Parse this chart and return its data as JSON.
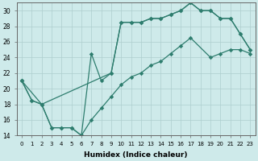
{
  "xlabel": "Humidex (Indice chaleur)",
  "bg_color": "#ceeaea",
  "line_color": "#2e7d6e",
  "grid_color": "#aecece",
  "xlim": [
    -0.5,
    23.5
  ],
  "ylim": [
    14,
    31
  ],
  "xticks": [
    0,
    1,
    2,
    3,
    4,
    5,
    6,
    7,
    8,
    9,
    10,
    11,
    12,
    13,
    14,
    15,
    16,
    17,
    18,
    19,
    20,
    21,
    22,
    23
  ],
  "yticks": [
    14,
    16,
    18,
    20,
    22,
    24,
    26,
    28,
    30
  ],
  "line1_x": [
    0,
    1,
    2,
    9,
    10,
    11,
    12,
    13,
    14,
    15,
    16,
    17,
    18,
    19,
    20,
    21,
    22,
    23
  ],
  "line1_y": [
    21,
    18.5,
    18,
    22,
    28.5,
    28.5,
    28.5,
    29,
    29,
    29.5,
    30,
    31,
    30,
    30,
    29,
    29,
    27,
    25
  ],
  "line2_x": [
    0,
    1,
    2,
    3,
    4,
    5,
    6,
    7,
    8,
    9,
    10,
    11,
    12,
    13,
    14,
    15,
    16,
    17,
    18,
    19,
    20,
    21,
    22,
    23
  ],
  "line2_y": [
    21,
    18.5,
    18,
    15,
    15,
    15,
    14,
    24.5,
    21,
    22,
    28.5,
    28.5,
    28.5,
    29,
    29,
    29.5,
    30,
    31,
    30,
    30,
    29,
    29,
    27,
    25
  ],
  "line3_x": [
    0,
    2,
    3,
    4,
    5,
    6,
    7,
    8,
    9,
    10,
    11,
    12,
    13,
    14,
    15,
    16,
    17,
    19,
    20,
    21,
    22,
    23
  ],
  "line3_y": [
    21,
    18,
    15,
    15,
    15,
    14,
    16,
    17.5,
    19,
    20.5,
    21.5,
    22,
    23,
    23.5,
    24.5,
    25.5,
    26.5,
    24,
    24.5,
    25,
    25,
    24.5
  ]
}
